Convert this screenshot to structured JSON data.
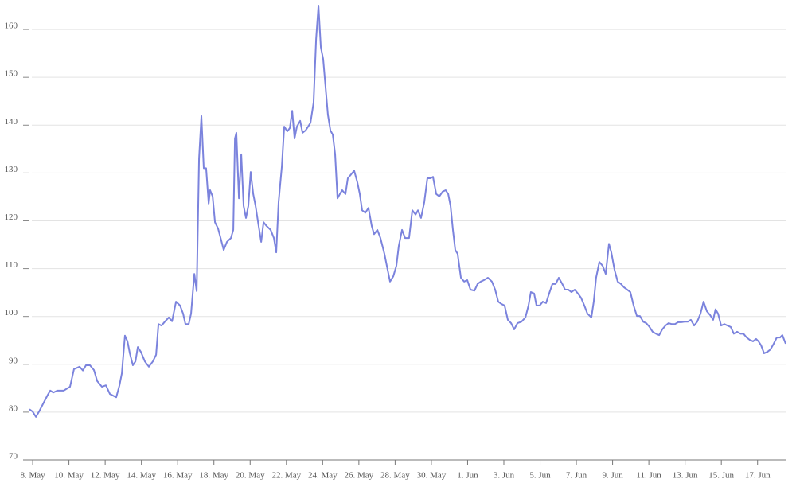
{
  "chart_data": {
    "type": "line",
    "color": "#7b83dd",
    "grid": true,
    "x": [
      7.82,
      8.0,
      8.18,
      8.35,
      8.61,
      8.83,
      8.97,
      9.14,
      9.36,
      9.71,
      10.06,
      10.28,
      10.59,
      10.77,
      10.94,
      11.16,
      11.38,
      11.56,
      11.82,
      12.04,
      12.26,
      12.61,
      12.79,
      12.92,
      13.09,
      13.23,
      13.36,
      13.53,
      13.67,
      13.8,
      13.97,
      14.19,
      14.41,
      14.63,
      14.81,
      14.94,
      15.11,
      15.29,
      15.51,
      15.69,
      15.91,
      16.13,
      16.3,
      16.43,
      16.61,
      16.74,
      16.92,
      17.05,
      17.18,
      17.31,
      17.44,
      17.57,
      17.71,
      17.79,
      17.93,
      18.06,
      18.23,
      18.37,
      18.54,
      18.72,
      18.94,
      19.07,
      19.16,
      19.24,
      19.38,
      19.51,
      19.64,
      19.77,
      19.9,
      20.03,
      20.17,
      20.3,
      20.47,
      20.61,
      20.74,
      20.91,
      21.13,
      21.31,
      21.44,
      21.57,
      21.75,
      21.88,
      22.05,
      22.19,
      22.32,
      22.45,
      22.58,
      22.76,
      22.89,
      23.06,
      23.2,
      23.33,
      23.5,
      23.64,
      23.77,
      23.9,
      24.03,
      24.16,
      24.29,
      24.43,
      24.56,
      24.69,
      24.82,
      24.95,
      25.08,
      25.26,
      25.39,
      25.57,
      25.74,
      25.92,
      26.05,
      26.18,
      26.36,
      26.53,
      26.71,
      26.84,
      27.02,
      27.19,
      27.41,
      27.59,
      27.72,
      27.9,
      28.07,
      28.2,
      28.38,
      28.55,
      28.77,
      28.95,
      29.13,
      29.26,
      29.43,
      29.61,
      29.78,
      29.96,
      30.09,
      30.27,
      30.44,
      30.62,
      30.79,
      30.93,
      31.06,
      31.19,
      31.32,
      31.45,
      31.63,
      31.81,
      31.98,
      32.16,
      32.38,
      32.55,
      32.73,
      32.9,
      33.12,
      33.34,
      33.52,
      33.69,
      33.87,
      34.04,
      34.22,
      34.4,
      34.57,
      34.75,
      34.97,
      35.19,
      35.36,
      35.49,
      35.67,
      35.8,
      35.98,
      36.15,
      36.33,
      36.5,
      36.68,
      36.86,
      37.03,
      37.21,
      37.38,
      37.56,
      37.73,
      37.91,
      38.09,
      38.26,
      38.44,
      38.61,
      38.83,
      38.96,
      39.09,
      39.27,
      39.45,
      39.62,
      39.8,
      39.93,
      40.11,
      40.28,
      40.46,
      40.63,
      40.81,
      40.98,
      41.16,
      41.34,
      41.51,
      41.69,
      41.86,
      42.04,
      42.21,
      42.39,
      42.57,
      42.74,
      42.92,
      43.09,
      43.27,
      43.44,
      43.62,
      43.79,
      43.97,
      44.15,
      44.32,
      44.5,
      44.67,
      44.85,
      45.02,
      45.2,
      45.38,
      45.55,
      45.68,
      45.82,
      45.99,
      46.17,
      46.34,
      46.52,
      46.69,
      46.87,
      47.05,
      47.22,
      47.4,
      47.57,
      47.75,
      47.92,
      48.05,
      48.19,
      48.36,
      48.54,
      48.71,
      48.89,
      49.06,
      49.24,
      49.37,
      49.55
    ],
    "values": [
      80.6,
      80.1,
      79.0,
      80.1,
      82.0,
      83.6,
      84.5,
      84.1,
      84.5,
      84.5,
      85.3,
      89.0,
      89.5,
      88.7,
      89.8,
      89.8,
      88.8,
      86.5,
      85.3,
      85.6,
      83.8,
      83.1,
      85.6,
      88.1,
      96.0,
      94.8,
      92.3,
      89.8,
      90.6,
      93.6,
      92.6,
      90.6,
      89.5,
      90.6,
      92.0,
      98.4,
      98.1,
      98.9,
      99.8,
      99.0,
      103.1,
      102.3,
      100.6,
      98.4,
      98.4,
      100.6,
      108.9,
      105.3,
      133.0,
      141.9,
      131.0,
      131.0,
      123.6,
      126.4,
      125.1,
      119.7,
      118.4,
      116.4,
      113.9,
      115.6,
      116.4,
      118.1,
      137.2,
      138.4,
      124.7,
      133.9,
      123.1,
      120.6,
      123.1,
      130.2,
      125.6,
      123.1,
      118.9,
      115.6,
      119.7,
      118.9,
      118.1,
      116.4,
      113.4,
      123.9,
      131.4,
      139.7,
      138.7,
      139.4,
      143.0,
      137.2,
      139.7,
      140.9,
      138.4,
      138.9,
      139.7,
      140.5,
      144.7,
      158.0,
      165.0,
      156.3,
      153.8,
      148.0,
      142.2,
      138.9,
      138.0,
      133.9,
      124.7,
      125.6,
      126.4,
      125.6,
      128.9,
      129.7,
      130.5,
      128.0,
      125.6,
      122.2,
      121.7,
      122.7,
      118.9,
      117.2,
      118.1,
      116.4,
      113.1,
      109.7,
      107.3,
      108.4,
      110.6,
      114.7,
      118.1,
      116.4,
      116.4,
      122.2,
      121.3,
      122.2,
      120.6,
      123.9,
      128.9,
      128.9,
      129.2,
      125.6,
      125.1,
      126.1,
      126.4,
      125.6,
      123.1,
      118.1,
      113.9,
      113.1,
      108.1,
      107.3,
      107.6,
      105.6,
      105.4,
      106.8,
      107.3,
      107.6,
      108.1,
      107.3,
      105.6,
      103.1,
      102.6,
      102.3,
      99.3,
      98.6,
      97.3,
      98.6,
      98.9,
      99.8,
      102.3,
      105.1,
      104.8,
      102.3,
      102.3,
      103.1,
      102.8,
      104.8,
      106.8,
      106.8,
      108.1,
      106.9,
      105.6,
      105.6,
      105.1,
      105.6,
      104.8,
      103.9,
      102.3,
      100.6,
      99.8,
      103.1,
      108.1,
      111.4,
      110.6,
      108.9,
      115.2,
      113.4,
      109.7,
      107.3,
      106.8,
      106.1,
      105.6,
      105.1,
      102.3,
      100.1,
      100.1,
      98.9,
      98.6,
      97.8,
      96.8,
      96.4,
      96.1,
      97.3,
      98.1,
      98.6,
      98.4,
      98.4,
      98.8,
      98.8,
      98.9,
      98.9,
      99.3,
      98.1,
      98.9,
      100.6,
      103.1,
      101.1,
      100.3,
      99.3,
      101.5,
      100.6,
      98.1,
      98.4,
      98.1,
      97.8,
      96.4,
      96.8,
      96.4,
      96.4,
      95.6,
      95.1,
      94.8,
      95.3,
      94.8,
      94.0,
      92.3,
      92.6,
      93.1,
      94.3,
      95.6,
      95.6,
      96.1,
      94.3
    ],
    "xlim": [
      7.47,
      49.55
    ],
    "xticks": [
      {
        "value": 8,
        "label": "8. May"
      },
      {
        "value": 10,
        "label": "10. May"
      },
      {
        "value": 12,
        "label": "12. May"
      },
      {
        "value": 14,
        "label": "14. May"
      },
      {
        "value": 16,
        "label": "16. May"
      },
      {
        "value": 18,
        "label": "18. May"
      },
      {
        "value": 20,
        "label": "20. May"
      },
      {
        "value": 22,
        "label": "22. May"
      },
      {
        "value": 24,
        "label": "24. May"
      },
      {
        "value": 26,
        "label": "26. May"
      },
      {
        "value": 28,
        "label": "28. May"
      },
      {
        "value": 30,
        "label": "30. May"
      },
      {
        "value": 32,
        "label": "1. Jun"
      },
      {
        "value": 34,
        "label": "3. Jun"
      },
      {
        "value": 36,
        "label": "5. Jun"
      },
      {
        "value": 38,
        "label": "7. Jun"
      },
      {
        "value": 40,
        "label": "9. Jun"
      },
      {
        "value": 42,
        "label": "11. Jun"
      },
      {
        "value": 44,
        "label": "13. Jun"
      },
      {
        "value": 46,
        "label": "15. Jun"
      },
      {
        "value": 48,
        "label": "17. Jun"
      }
    ],
    "ylim": [
      70,
      166
    ],
    "yticks": [
      70,
      80,
      90,
      100,
      110,
      120,
      130,
      140,
      150,
      160
    ]
  }
}
